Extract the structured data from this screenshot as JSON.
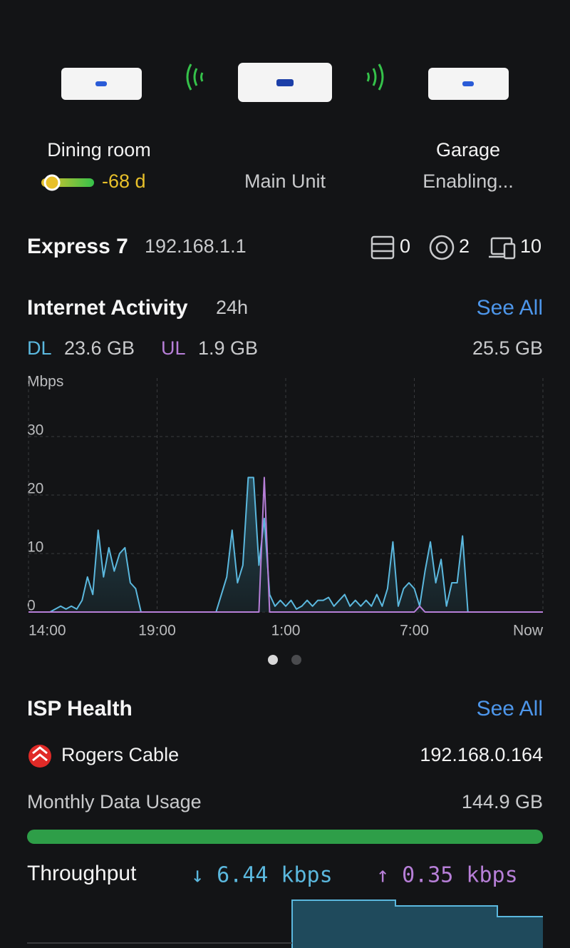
{
  "devices": [
    {
      "label": "Dining room",
      "signal": "-68 d"
    },
    {
      "label": "Main Unit"
    },
    {
      "label": "Garage",
      "status": "Enabling..."
    }
  ],
  "gateway": {
    "name": "Express 7",
    "ip": "192.168.1.1",
    "counts": [
      0,
      2,
      10
    ]
  },
  "internet_activity": {
    "title": "Internet Activity",
    "period": "24h",
    "see_all": "See All",
    "dl_label": "DL",
    "dl": "23.6 GB",
    "ul_label": "UL",
    "ul": "1.9 GB",
    "total": "25.5 GB"
  },
  "chart_data": {
    "type": "line",
    "y_label": "Mbps",
    "x": [
      0,
      0.25,
      0.5,
      0.75,
      1,
      1.25,
      1.5,
      1.75,
      2,
      2.25,
      2.5,
      2.75,
      3,
      3.25,
      3.5,
      3.75,
      4,
      4.25,
      4.5,
      4.75,
      5,
      5.25,
      5.5,
      5.75,
      6,
      6.25,
      6.5,
      6.75,
      7,
      7.25,
      7.5,
      7.75,
      8,
      8.25,
      8.5,
      8.75,
      9,
      9.25,
      9.5,
      9.75,
      10,
      10.25,
      10.5,
      10.75,
      11,
      11.25,
      11.5,
      11.75,
      12,
      12.25,
      12.5,
      12.75,
      13,
      13.25,
      13.5,
      13.75,
      14,
      14.25,
      14.5,
      14.75,
      15,
      15.25,
      15.5,
      15.75,
      16,
      16.25,
      16.5,
      16.75,
      17,
      17.25,
      17.5,
      17.75,
      18,
      18.25,
      18.5,
      18.75,
      19,
      19.25,
      19.5,
      19.75,
      20,
      20.25,
      20.5,
      20.75,
      21,
      21.25,
      21.5,
      21.75,
      22,
      22.25,
      22.5,
      22.75,
      23,
      23.25,
      23.5,
      23.75,
      24
    ],
    "series": [
      {
        "name": "DL",
        "color": "#5bb8de",
        "values": [
          0,
          0,
          0,
          0,
          0,
          0.5,
          1,
          0.5,
          1,
          0.5,
          2,
          6,
          3,
          14,
          6,
          11,
          7,
          10,
          11,
          5,
          4,
          0,
          0,
          0,
          0,
          0,
          0,
          0,
          0,
          0,
          0,
          0,
          0,
          0,
          0,
          0,
          3,
          6,
          14,
          5,
          8,
          23,
          23,
          8,
          16,
          3,
          1,
          2,
          1,
          2,
          0.5,
          1,
          2,
          1,
          2,
          2,
          2.5,
          1,
          2,
          3,
          1,
          2,
          1,
          2,
          1,
          3,
          1,
          4,
          12,
          1,
          4,
          5,
          4,
          1,
          7,
          12,
          5,
          9,
          1,
          5,
          5,
          13,
          0,
          0,
          0,
          0,
          0,
          0,
          0,
          0,
          0,
          0,
          0,
          0,
          0,
          0,
          0
        ]
      },
      {
        "name": "UL",
        "color": "#b77fd8",
        "values": [
          0,
          0,
          0,
          0,
          0,
          0,
          0,
          0,
          0,
          0,
          0,
          0,
          0,
          0,
          0,
          0,
          0,
          0,
          0,
          0,
          0,
          0,
          0,
          0,
          0,
          0,
          0,
          0,
          0,
          0,
          0,
          0,
          0,
          0,
          0,
          0,
          0,
          0,
          0,
          0,
          0,
          0,
          0,
          0,
          23,
          0,
          0,
          0,
          0,
          0,
          0,
          0,
          0,
          0,
          0,
          0,
          0,
          0,
          0,
          0,
          0,
          0,
          0,
          0,
          0,
          0,
          0,
          0,
          0,
          0,
          0,
          0,
          0,
          1,
          0,
          0,
          0,
          0,
          0,
          0,
          0,
          0,
          0,
          0,
          0,
          0,
          0,
          0,
          0,
          0,
          0,
          0,
          0,
          0,
          0,
          0,
          0
        ]
      }
    ],
    "xlim": [
      0,
      24
    ],
    "xticks": [
      {
        "value": 0,
        "label": "14:00"
      },
      {
        "value": 6,
        "label": "19:00"
      },
      {
        "value": 12,
        "label": "1:00"
      },
      {
        "value": 18,
        "label": "7:00"
      },
      {
        "value": 24,
        "label": "Now"
      }
    ],
    "ylim": [
      0,
      40
    ],
    "yticks": [
      0,
      10,
      20,
      30
    ],
    "grid": true
  },
  "isp_health": {
    "title": "ISP Health",
    "see_all": "See All",
    "provider": "Rogers Cable",
    "ip": "192.168.0.164",
    "usage_label": "Monthly Data Usage",
    "usage": "144.9 GB"
  },
  "throughput": {
    "label": "Throughput",
    "down": "↓ 6.44 kbps",
    "up": "↑ 0.35 kbps"
  }
}
